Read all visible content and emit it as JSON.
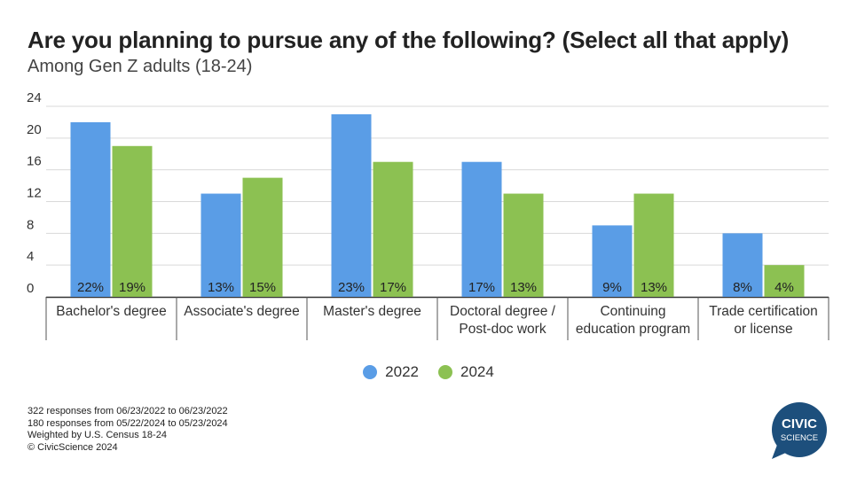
{
  "title": "Are you planning to pursue any of the following? (Select all that apply)",
  "subtitle": "Among Gen Z adults (18-24)",
  "colors": {
    "s2022": "#5a9de6",
    "s2024": "#8cc152",
    "grid": "#d9d9d9",
    "axis": "#333333",
    "logo": "#1d4f7c"
  },
  "chart_data": {
    "type": "bar",
    "categories": [
      [
        "Bachelor's degree"
      ],
      [
        "Associate's degree"
      ],
      [
        "Master's degree"
      ],
      [
        "Doctoral degree /",
        "Post-doc work"
      ],
      [
        "Continuing",
        "education program"
      ],
      [
        "Trade certification",
        "or license"
      ]
    ],
    "series": [
      {
        "name": "2022",
        "values": [
          22,
          13,
          23,
          17,
          9,
          8
        ],
        "labels": [
          "22%",
          "13%",
          "23%",
          "17%",
          "9%",
          "8%"
        ]
      },
      {
        "name": "2024",
        "values": [
          19,
          15,
          17,
          13,
          13,
          4
        ],
        "labels": [
          "19%",
          "15%",
          "17%",
          "13%",
          "13%",
          "4%"
        ]
      }
    ],
    "yticks": [
      "0",
      "4",
      "8",
      "12",
      "16",
      "20",
      "24"
    ],
    "ylim": [
      0,
      24
    ],
    "grid": true,
    "legend": "bottom-center"
  },
  "footnotes": [
    "322 responses from 06/23/2022 to 06/23/2022",
    "180 responses from 05/22/2024 to 05/23/2024",
    "Weighted by U.S. Census 18-24",
    "© CivicScience 2024"
  ],
  "logo": {
    "line1": "CIVIC",
    "line2": "SCIENCE"
  }
}
